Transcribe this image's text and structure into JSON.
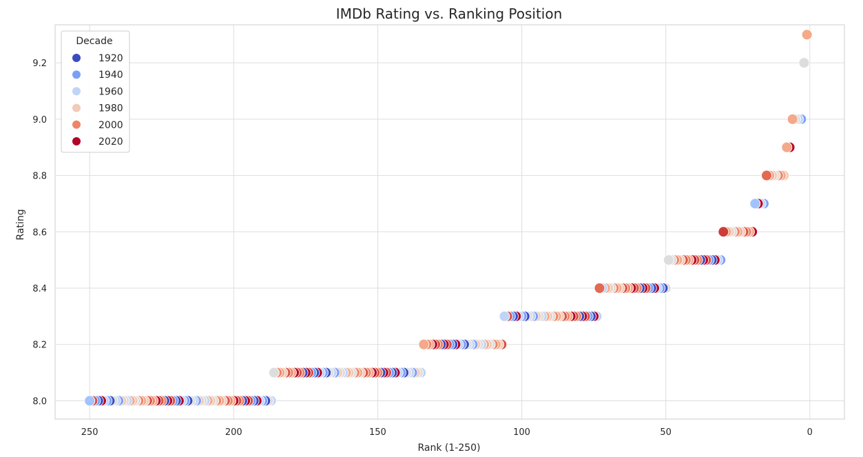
{
  "chart_data": {
    "type": "scatter",
    "title": "IMDb Rating vs. Ranking Position",
    "xlabel": "Rank (1-250)",
    "ylabel": "Rating",
    "xlim": [
      262,
      -12
    ],
    "x_reversed": true,
    "ylim": [
      7.935,
      9.335
    ],
    "x_ticks": [
      250,
      200,
      150,
      100,
      50,
      0
    ],
    "y_ticks": [
      8.0,
      8.2,
      8.4,
      8.6,
      8.8,
      9.0,
      9.2
    ],
    "y_tick_labels": [
      "8.0",
      "8.2",
      "8.4",
      "8.6",
      "8.8",
      "9.0",
      "9.2"
    ],
    "grid": true,
    "legend": {
      "title": "Decade",
      "position": "top-left",
      "entries": [
        {
          "label": "1920",
          "color": "#3b4cc0"
        },
        {
          "label": "1940",
          "color": "#7b9ff9"
        },
        {
          "label": "1960",
          "color": "#c0d4f5"
        },
        {
          "label": "1980",
          "color": "#f2cbb7"
        },
        {
          "label": "2000",
          "color": "#ee8468"
        },
        {
          "label": "2020",
          "color": "#b40426"
        }
      ]
    },
    "palette": [
      "#3b4cc0",
      "#7b9ff9",
      "#c0d4f5",
      "#dddddd",
      "#f2cbb7",
      "#f4a989",
      "#ee8468",
      "#d65244",
      "#b40426"
    ],
    "rating_groups": [
      {
        "rating": 8.0,
        "rank_from": 250,
        "rank_to": 187,
        "first_color": "#a3c2fe"
      },
      {
        "rating": 8.1,
        "rank_from": 186,
        "rank_to": 135,
        "first_color": "#dddddd"
      },
      {
        "rating": 8.2,
        "rank_from": 134,
        "rank_to": 107,
        "first_color": "#f4a989"
      },
      {
        "rating": 8.3,
        "rank_from": 106,
        "rank_to": 74,
        "first_color": "#c0d4f5"
      },
      {
        "rating": 8.4,
        "rank_from": 73,
        "rank_to": 50,
        "first_color": "#e26952"
      },
      {
        "rating": 8.5,
        "rank_from": 49,
        "rank_to": 31,
        "first_color": "#dddddd"
      },
      {
        "rating": 8.6,
        "rank_from": 30,
        "rank_to": 20,
        "first_color": "#cc3d39"
      },
      {
        "rating": 8.7,
        "rank_from": 19,
        "rank_to": 16,
        "first_color": "#a3c2fe"
      },
      {
        "rating": 8.8,
        "rank_from": 15,
        "rank_to": 9,
        "first_color": "#e26952"
      },
      {
        "rating": 8.9,
        "rank_from": 8,
        "rank_to": 7,
        "first_color": "#f4a989"
      },
      {
        "rating": 9.0,
        "rank_from": 6,
        "rank_to": 3,
        "first_color": "#f4a989"
      },
      {
        "rating": 9.2,
        "rank_from": 2,
        "rank_to": 2,
        "first_color": "#dddddd"
      },
      {
        "rating": 9.3,
        "rank_from": 1,
        "rank_to": 1,
        "first_color": "#f4a989"
      }
    ]
  }
}
